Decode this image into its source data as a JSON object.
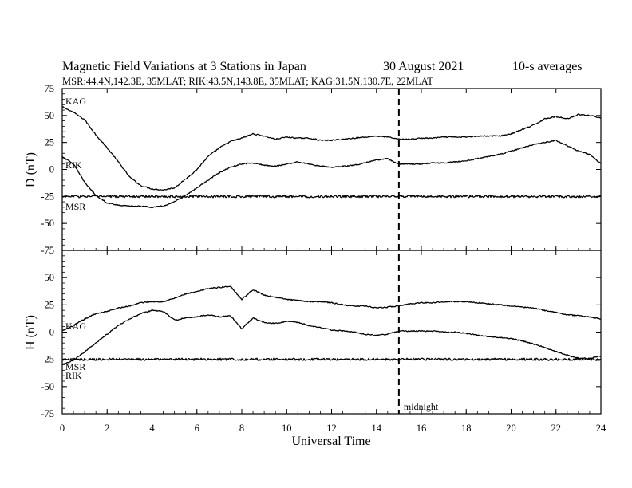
{
  "chart_data": {
    "type": "line",
    "title": {
      "main": "Magnetic Field Variations at 3 Stations in Japan",
      "date": "30  August  2021",
      "avg": "10-s averages"
    },
    "subtitle": "MSR:44.4N,142.3E, 35MLAT;  RIK:43.5N,143.8E, 35MLAT;  KAG:31.5N,130.7E, 22MLAT",
    "xlabel": "Universal Time",
    "xlim": [
      0,
      24
    ],
    "xticks": [
      "0",
      "2",
      "4",
      "6",
      "8",
      "10",
      "12",
      "14",
      "16",
      "18",
      "20",
      "22",
      "24"
    ],
    "grid": false,
    "annotation": {
      "text": "midnight",
      "x": 15
    },
    "panels": [
      {
        "ylabel": "D (nT)",
        "ylim": [
          -75,
          75
        ],
        "yticks": [
          "75",
          "50",
          "25",
          "0",
          "-25",
          "-50",
          "-75"
        ],
        "series": [
          {
            "name": "KAG",
            "x": [
              0,
              0.5,
              1,
              1.5,
              2,
              2.5,
              3,
              3.5,
              4,
              4.5,
              5,
              5.5,
              6,
              6.5,
              7,
              7.5,
              8,
              8.5,
              9,
              9.5,
              10,
              10.5,
              11,
              11.5,
              12,
              12.5,
              13,
              13.5,
              14,
              14.5,
              15,
              15.5,
              16,
              16.5,
              17,
              17.5,
              18,
              18.5,
              19,
              19.5,
              20,
              20.5,
              21,
              21.5,
              22,
              22.5,
              23,
              23.5,
              24
            ],
            "y": [
              58,
              53,
              46,
              32,
              20,
              7,
              -7,
              -15,
              -18,
              -19,
              -17,
              -9,
              0,
              12,
              20,
              26,
              29,
              33,
              31,
              28,
              30,
              29,
              29,
              27,
              27,
              28,
              29,
              30,
              31,
              30,
              28,
              28,
              29,
              29,
              30,
              30,
              30,
              31,
              31,
              31,
              33,
              37,
              41,
              47,
              49,
              47,
              51,
              50,
              48
            ]
          },
          {
            "name": "RIK",
            "x": [
              0,
              0.5,
              1,
              1.5,
              2,
              2.5,
              3,
              3.5,
              4,
              4.5,
              5,
              5.5,
              6,
              6.5,
              7,
              7.5,
              8,
              8.5,
              9,
              9.5,
              10,
              10.5,
              11,
              11.5,
              12,
              12.5,
              13,
              13.5,
              14,
              14.5,
              15,
              15.5,
              16,
              16.5,
              17,
              17.5,
              18,
              18.5,
              19,
              19.5,
              20,
              20.5,
              21,
              21.5,
              22,
              22.5,
              23,
              23.5,
              24
            ],
            "y": [
              12,
              5,
              -12,
              -24,
              -31,
              -33,
              -34,
              -34,
              -35,
              -34,
              -30,
              -24,
              -17,
              -10,
              -3,
              2,
              5,
              6,
              4,
              3,
              5,
              7,
              5,
              3,
              2,
              3,
              4,
              6,
              9,
              10,
              5,
              5,
              5,
              6,
              6,
              7,
              8,
              10,
              12,
              14,
              17,
              20,
              23,
              25,
              27,
              22,
              17,
              14,
              5
            ]
          },
          {
            "name": "MSR",
            "x": [
              0,
              24
            ],
            "y": [
              -25,
              -25
            ]
          }
        ]
      },
      {
        "ylabel": "H (nT)",
        "ylim": [
          -75,
          75
        ],
        "yticks": [
          "75",
          "50",
          "25",
          "0",
          "-25",
          "-50",
          "-75"
        ],
        "series": [
          {
            "name": "KAG",
            "x": [
              0,
              0.5,
              1,
              1.5,
              2,
              2.5,
              3,
              3.5,
              4,
              4.5,
              5,
              5.5,
              6,
              6.5,
              7,
              7.5,
              8,
              8.5,
              9,
              9.5,
              10,
              10.5,
              11,
              11.5,
              12,
              12.5,
              13,
              13.5,
              14,
              14.5,
              15,
              15.5,
              16,
              16.5,
              17,
              17.5,
              18,
              18.5,
              19,
              19.5,
              20,
              20.5,
              21,
              21.5,
              22,
              22.5,
              23,
              23.5,
              24
            ],
            "y": [
              1,
              6,
              12,
              17,
              19,
              22,
              24,
              27,
              28,
              28,
              31,
              35,
              37,
              40,
              41,
              42,
              30,
              39,
              34,
              32,
              30,
              29,
              28,
              28,
              27,
              25,
              24,
              24,
              22,
              23,
              24,
              26,
              27,
              27,
              28,
              28,
              28,
              27,
              26,
              25,
              24,
              23,
              22,
              20,
              18,
              16,
              15,
              14,
              12
            ]
          },
          {
            "name": "RIK",
            "x": [
              0,
              0.5,
              1,
              1.5,
              2,
              2.5,
              3,
              3.5,
              4,
              4.5,
              5,
              5.5,
              6,
              6.5,
              7,
              7.5,
              8,
              8.5,
              9,
              9.5,
              10,
              10.5,
              11,
              11.5,
              12,
              12.5,
              13,
              13.5,
              14,
              14.5,
              15,
              15.5,
              16,
              16.5,
              17,
              17.5,
              18,
              18.5,
              19,
              19.5,
              20,
              20.5,
              21,
              21.5,
              22,
              22.5,
              23,
              23.5,
              24
            ],
            "y": [
              -30,
              -26,
              -18,
              -10,
              -2,
              6,
              12,
              17,
              20,
              19,
              11,
              13,
              14,
              16,
              14,
              15,
              3,
              13,
              9,
              8,
              10,
              9,
              6,
              4,
              2,
              1,
              0,
              -2,
              -3,
              -2,
              1,
              1,
              1,
              1,
              0,
              0,
              -1,
              -3,
              -4,
              -5,
              -6,
              -8,
              -11,
              -14,
              -18,
              -21,
              -24,
              -24,
              -22
            ]
          },
          {
            "name": "MSR",
            "x": [
              0,
              24
            ],
            "y": [
              -25,
              -25
            ]
          }
        ]
      }
    ]
  }
}
